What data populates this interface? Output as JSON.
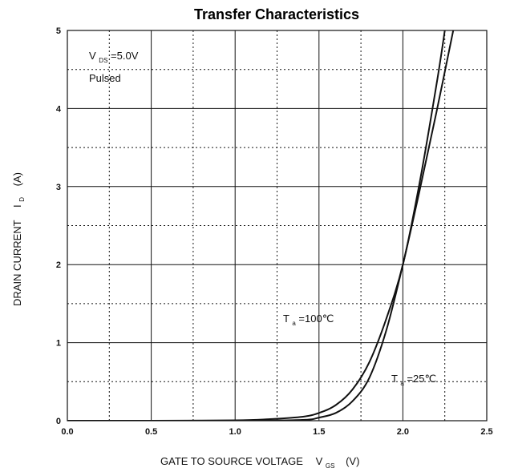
{
  "chart_data": {
    "type": "line",
    "title": "Transfer Characteristics",
    "xlabel": {
      "main": "GATE TO SOURCE VOLTAGE",
      "symbol": "V",
      "sub": "GS",
      "unit": "(V)"
    },
    "ylabel": {
      "main": "DRAIN CURRENT",
      "symbol": "I",
      "sub": "D",
      "unit": "(A)"
    },
    "xlim": [
      0,
      2.5
    ],
    "ylim": [
      0,
      5
    ],
    "x_ticks": [
      "0.0",
      "0.5",
      "1.0",
      "1.5",
      "2.0",
      "2.5"
    ],
    "y_ticks": [
      "0",
      "1",
      "2",
      "3",
      "4",
      "5"
    ],
    "grid": "major solid, minor dotted",
    "conditions": {
      "vds_symbol": "V",
      "vds_sub": "DS",
      "vds_value": "=5.0V",
      "mode": "Pulsed"
    },
    "series": [
      {
        "name": "Ta=100℃",
        "label": {
          "symbol": "T",
          "sub": "a",
          "value": "=100℃"
        },
        "points": [
          [
            0,
            0
          ],
          [
            0.5,
            0
          ],
          [
            1.0,
            0.005
          ],
          [
            1.2,
            0.02
          ],
          [
            1.4,
            0.05
          ],
          [
            1.5,
            0.1
          ],
          [
            1.6,
            0.2
          ],
          [
            1.7,
            0.4
          ],
          [
            1.8,
            0.75
          ],
          [
            1.9,
            1.3
          ],
          [
            2.0,
            2.0
          ],
          [
            2.1,
            3.05
          ],
          [
            2.2,
            4.3
          ],
          [
            2.25,
            5.0
          ]
        ]
      },
      {
        "name": "Ta=25℃",
        "label": {
          "symbol": "T",
          "sub": "a",
          "value": "=25℃"
        },
        "points": [
          [
            0,
            0
          ],
          [
            1.0,
            0
          ],
          [
            1.4,
            0.01
          ],
          [
            1.5,
            0.04
          ],
          [
            1.6,
            0.1
          ],
          [
            1.7,
            0.25
          ],
          [
            1.8,
            0.55
          ],
          [
            1.9,
            1.15
          ],
          [
            2.0,
            2.0
          ],
          [
            2.1,
            2.95
          ],
          [
            2.2,
            3.95
          ],
          [
            2.3,
            5.0
          ]
        ]
      }
    ]
  }
}
